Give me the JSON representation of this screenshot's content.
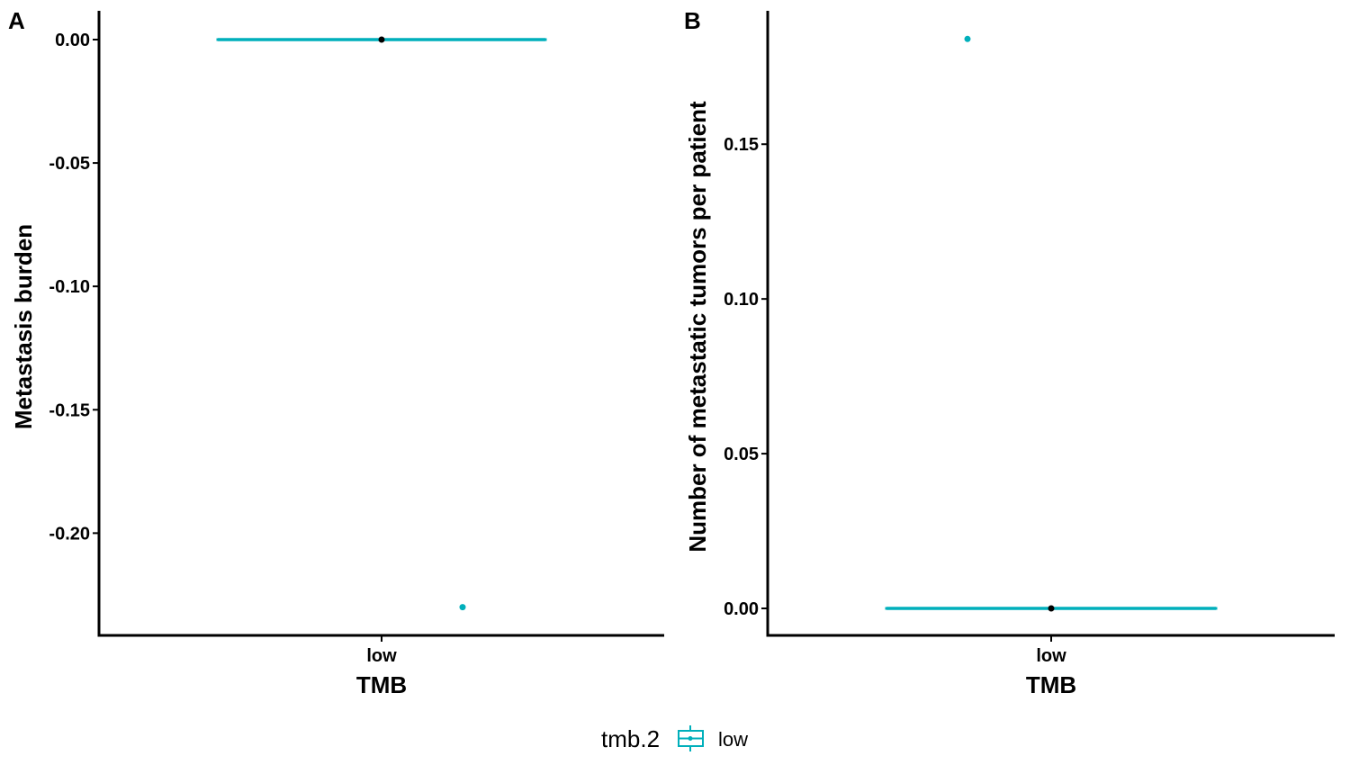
{
  "colors": {
    "series": "#00AFBB",
    "mean": "#000000",
    "axis": "#000000"
  },
  "chart_data": [
    {
      "panel_label": "A",
      "type": "boxplot",
      "categories": [
        "low"
      ],
      "xlabel": "TMB",
      "ylabel": "Metastasis burden",
      "ylim": [
        -0.2305,
        0.0
      ],
      "yticks": [
        0.0,
        -0.05,
        -0.1,
        -0.15,
        -0.2
      ],
      "ytick_labels": [
        "0.00",
        "-0.05",
        "-0.10",
        "-0.15",
        "-0.20"
      ],
      "boxes": [
        {
          "category": "low",
          "q1": 0.0,
          "median": 0.0,
          "q3": 0.0,
          "mean": 0.0,
          "outliers": [
            -0.23
          ]
        }
      ]
    },
    {
      "panel_label": "B",
      "type": "boxplot",
      "categories": [
        "low"
      ],
      "xlabel": "TMB",
      "ylabel": "Number of metastatic tumors per patient",
      "ylim": [
        0.0,
        0.1838
      ],
      "yticks": [
        0.0,
        0.05,
        0.1,
        0.15
      ],
      "ytick_labels": [
        "0.00",
        "0.05",
        "0.10",
        "0.15"
      ],
      "boxes": [
        {
          "category": "low",
          "q1": 0.0,
          "median": 0.0,
          "q3": 0.0,
          "mean": 0.0,
          "outliers": [
            0.184
          ]
        }
      ]
    }
  ],
  "legend": {
    "title": "tmb.2",
    "entries": [
      {
        "label": "low",
        "icon": "boxplot-key-icon"
      }
    ],
    "placement": "bottom"
  }
}
